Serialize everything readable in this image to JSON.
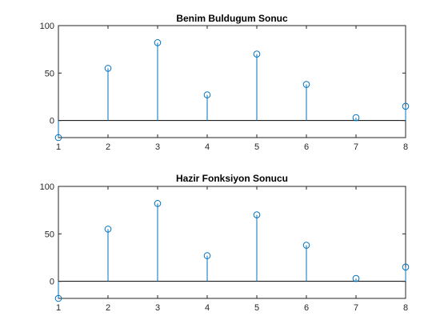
{
  "chart_data": [
    {
      "type": "stem",
      "title": "Benim Buldugum Sonuc",
      "x": [
        1,
        2,
        3,
        4,
        5,
        6,
        7,
        8
      ],
      "values": [
        -18,
        55,
        82,
        27,
        70,
        38,
        3,
        15
      ],
      "xlim": [
        1,
        8
      ],
      "ylim": [
        -18,
        100
      ],
      "xticks": [
        "1",
        "2",
        "3",
        "4",
        "5",
        "6",
        "7",
        "8"
      ],
      "yticks": [
        "0",
        "50",
        "100"
      ],
      "grid": false,
      "color": "#0072BD"
    },
    {
      "type": "stem",
      "title": "Hazir Fonksiyon Sonucu",
      "x": [
        1,
        2,
        3,
        4,
        5,
        6,
        7,
        8
      ],
      "values": [
        -18,
        55,
        82,
        27,
        70,
        38,
        3,
        15
      ],
      "xlim": [
        1,
        8
      ],
      "ylim": [
        -18,
        100
      ],
      "xticks": [
        "1",
        "2",
        "3",
        "4",
        "5",
        "6",
        "7",
        "8"
      ],
      "yticks": [
        "0",
        "50",
        "100"
      ],
      "grid": false,
      "color": "#0072BD"
    }
  ]
}
